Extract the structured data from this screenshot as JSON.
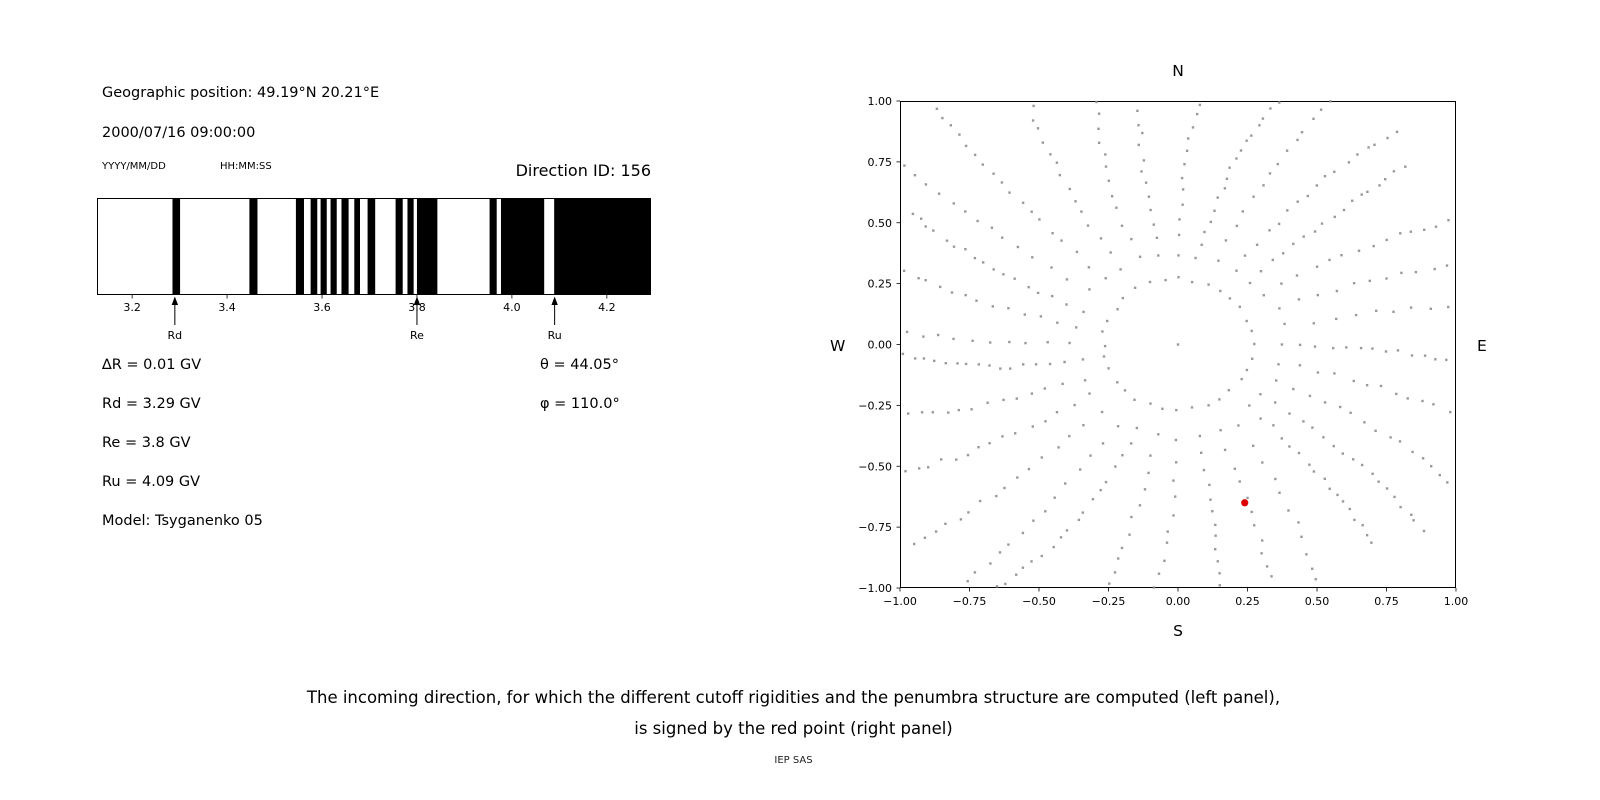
{
  "header": {
    "geo_position": "Geographic position: 49.19°N 20.21°E",
    "datetime": "2000/07/16 09:00:00",
    "date_format_label": "YYYY/MM/DD",
    "time_format_label": "HH:MM:SS",
    "direction_id_label": "Direction ID: 156"
  },
  "params": {
    "delta_r": "∆R = 0.01 GV",
    "rd": "Rd = 3.29 GV",
    "re": "Re = 3.8 GV",
    "ru": "Ru = 4.09 GV",
    "model": "Model: Tsyganenko 05",
    "theta": "θ = 44.05°",
    "phi": "φ = 110.0°"
  },
  "compass": {
    "north": "N",
    "south": "S",
    "east": "E",
    "west": "W"
  },
  "caption": {
    "line1": "The incoming direction, for which the different cutoff rigidities and the penumbra structure are computed (left panel),",
    "line2": "is signed by the red point (right panel)"
  },
  "credit": "IEP SAS",
  "chart_data": [
    {
      "type": "bar",
      "name": "penumbra-structure",
      "title": "",
      "xlim": [
        3.126,
        4.293
      ],
      "x_ticks": [
        3.2,
        3.4,
        3.6,
        3.8,
        4.0,
        4.2
      ],
      "x_tick_decimals": 1,
      "band_color": "#000000",
      "bands_gv": [
        [
          3.285,
          3.301
        ],
        [
          3.447,
          3.464
        ],
        [
          3.545,
          3.562
        ],
        [
          3.576,
          3.59
        ],
        [
          3.597,
          3.61
        ],
        [
          3.618,
          3.631
        ],
        [
          3.641,
          3.656
        ],
        [
          3.668,
          3.68
        ],
        [
          3.696,
          3.712
        ],
        [
          3.755,
          3.77
        ],
        [
          3.78,
          3.793
        ],
        [
          3.8,
          3.843
        ],
        [
          3.953,
          3.968
        ],
        [
          3.977,
          4.068
        ],
        [
          4.089,
          4.293
        ]
      ],
      "markers": [
        {
          "label": "Rd",
          "x_gv": 3.29
        },
        {
          "label": "Re",
          "x_gv": 3.8
        },
        {
          "label": "Ru",
          "x_gv": 4.09
        }
      ]
    },
    {
      "type": "scatter",
      "name": "incoming-direction-map",
      "xlim": [
        -1,
        1
      ],
      "ylim": [
        -1,
        1
      ],
      "x_ticks": [
        -1,
        -0.75,
        -0.5,
        -0.25,
        0,
        0.25,
        0.5,
        0.75,
        1
      ],
      "y_ticks": [
        -1,
        -0.75,
        -0.5,
        -0.25,
        0,
        0.25,
        0.5,
        0.75,
        1
      ],
      "tick_decimals": 2,
      "dot_color": "#8f8f8f",
      "pattern": {
        "kind": "radial-rays",
        "n_rays": 32,
        "inner_radius": 0.27,
        "outer_radius": 1.3,
        "dots_per_ray": 16,
        "twist_deg": 7,
        "jitter": 0.009,
        "seed": 11,
        "center_dot": true
      },
      "red_point": {
        "x": 0.24,
        "y": -0.65,
        "color": "#dd0000"
      }
    }
  ]
}
